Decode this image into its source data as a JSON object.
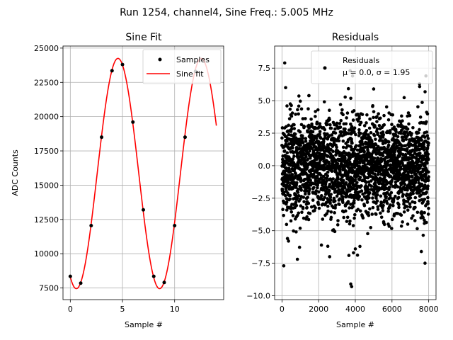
{
  "figure": {
    "suptitle": "Run 1254, channel4, Sine Freq.: 5.005 MHz"
  },
  "chart_data": [
    {
      "type": "line",
      "title": "Sine Fit",
      "xlabel": "Sample #",
      "ylabel": "ADC Counts",
      "xlim": [
        -0.7,
        14.7
      ],
      "ylim": [
        6650,
        25150
      ],
      "xticks": [
        0,
        5,
        10
      ],
      "yticks": [
        7500,
        10000,
        12500,
        15000,
        17500,
        20000,
        22500,
        25000
      ],
      "grid": true,
      "legend_position": "top-right",
      "series": [
        {
          "name": "Samples",
          "kind": "scatter",
          "color": "#000000",
          "x": [
            0,
            1,
            2,
            3,
            4,
            5,
            6,
            7,
            8,
            9,
            10,
            11,
            12
          ],
          "y": [
            8350,
            7850,
            12050,
            18500,
            23350,
            23800,
            19600,
            13200,
            8350,
            7900,
            12050,
            18500,
            23300
          ]
        },
        {
          "name": "Sine fit",
          "kind": "line",
          "color": "#ff0000",
          "model": {
            "offset": 15850,
            "amplitude": 8400,
            "period": 7.98,
            "peak_x": 4.57,
            "x_range": [
              0,
              14
            ]
          }
        }
      ]
    },
    {
      "type": "scatter",
      "title": "Residuals",
      "xlabel": "Sample #",
      "ylabel": "",
      "xlim": [
        -400,
        8400
      ],
      "ylim": [
        -10.3,
        9.2
      ],
      "xticks": [
        0,
        2000,
        4000,
        6000,
        8000
      ],
      "yticks": [
        -10.0,
        -7.5,
        -5.0,
        -2.5,
        0.0,
        2.5,
        5.0,
        7.5
      ],
      "grid": true,
      "legend_position": "top-right",
      "legend_label_line1": "Residuals",
      "legend_label_line2": "μ = 0.0, σ = 1.95",
      "series": [
        {
          "name": "Residuals",
          "color": "#000000",
          "n_points": 8000,
          "mean": 0.0,
          "sigma": 1.95,
          "x_range": [
            0,
            8000
          ],
          "outliers": [
            [
              150,
              7.9
            ],
            [
              100,
              -7.7
            ],
            [
              3750,
              -9.1
            ],
            [
              3800,
              -9.3
            ],
            [
              3720,
              7.3
            ],
            [
              3850,
              6.9
            ],
            [
              2500,
              -6.2
            ],
            [
              2600,
              -7.0
            ],
            [
              7800,
              -7.5
            ],
            [
              7850,
              6.9
            ],
            [
              3650,
              -6.9
            ],
            [
              3900,
              -6.7
            ],
            [
              7500,
              6.3
            ],
            [
              4000,
              -6.4
            ],
            [
              200,
              6.0
            ],
            [
              5000,
              5.9
            ],
            [
              7600,
              -6.6
            ],
            [
              300,
              -5.6
            ]
          ]
        }
      ]
    }
  ]
}
